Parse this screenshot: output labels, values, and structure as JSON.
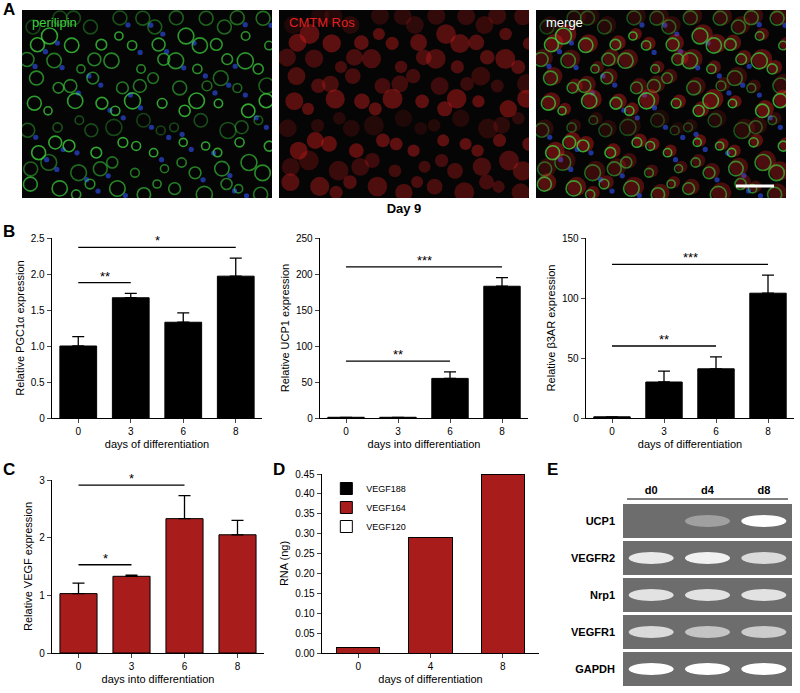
{
  "chart_data": [
    {
      "type": "image",
      "panel": "A",
      "images": [
        {
          "title": "perilipin",
          "color": "#3dd13d"
        },
        {
          "title": "CMTM Ros",
          "color": "#e02020"
        },
        {
          "title": "merge",
          "color": "#ffffff"
        }
      ],
      "caption": "Day 9"
    },
    {
      "type": "bar",
      "panel": "B",
      "categories": [
        "0",
        "3",
        "6",
        "8"
      ],
      "values": [
        1.0,
        1.67,
        1.33,
        1.97
      ],
      "errors": [
        0.13,
        0.06,
        0.13,
        0.25
      ],
      "color": "#000000",
      "xlabel": "days of differentiation",
      "ylabel": "Relative PGC1α expression",
      "ylim": [
        0,
        2.5
      ],
      "yticks": [
        0,
        0.5,
        {
          "value": 1,
          "label": "1.0"
        },
        1.5,
        {
          "value": 2,
          "label": "2.0"
        },
        2.5
      ],
      "significance": [
        {
          "from": "0",
          "to": "3",
          "label": "**"
        },
        {
          "from": "0",
          "to": "8",
          "label": "*"
        }
      ]
    },
    {
      "type": "bar",
      "categories": [
        "0",
        "3",
        "6",
        "8"
      ],
      "values": [
        1,
        1,
        55,
        183
      ],
      "errors": [
        0,
        0,
        9,
        12
      ],
      "color": "#000000",
      "xlabel": "days into differentiation",
      "ylabel": "Relative UCP1 expression",
      "ylim": [
        0,
        250
      ],
      "yticks": [
        0,
        50,
        100,
        150,
        200,
        250
      ],
      "significance": [
        {
          "from": "0",
          "to": "6",
          "label": "**"
        },
        {
          "from": "0",
          "to": "8",
          "label": "***"
        }
      ]
    },
    {
      "type": "bar",
      "categories": [
        "0",
        "3",
        "6",
        "8"
      ],
      "values": [
        1,
        30,
        41,
        104
      ],
      "errors": [
        0,
        9,
        10,
        15
      ],
      "color": "#000000",
      "xlabel": "days of differentiation",
      "ylabel": "Relative β3AR expression",
      "ylim": [
        0,
        150
      ],
      "yticks": [
        0,
        50,
        100,
        150
      ],
      "significance": [
        {
          "from": "0",
          "to": "6",
          "label": "**"
        },
        {
          "from": "0",
          "to": "8",
          "label": "***"
        }
      ]
    },
    {
      "type": "bar",
      "panel": "C",
      "categories": [
        "0",
        "3",
        "6",
        "8"
      ],
      "values": [
        1.03,
        1.33,
        2.33,
        2.05
      ],
      "errors": [
        0.18,
        0.02,
        0.4,
        0.25
      ],
      "color": "#a81c1c",
      "xlabel": "days into differentiation",
      "ylabel": "Relative VEGF expression",
      "ylim": [
        0,
        3
      ],
      "yticks": [
        0,
        1,
        2,
        3
      ],
      "significance": [
        {
          "from": "0",
          "to": "3",
          "label": "*"
        },
        {
          "from": "0",
          "to": "6",
          "label": "*"
        }
      ]
    },
    {
      "type": "bar",
      "panel": "D",
      "categories": [
        "0",
        "4",
        "8"
      ],
      "stacked": true,
      "legend": "upper left",
      "series": [
        {
          "name": "VEGF120",
          "color": "#ffffff",
          "values": [
            0,
            0,
            0
          ]
        },
        {
          "name": "VEGF164",
          "color": "#a81c1c",
          "values": [
            0.015,
            0.29,
            0.45
          ]
        },
        {
          "name": "VEGF188",
          "color": "#000000",
          "values": [
            0,
            0,
            0
          ]
        }
      ],
      "xlabel": "days of differentiation",
      "ylabel": "RNA (ng)",
      "ylim": [
        0,
        0.45
      ],
      "yticks": [
        {
          "value": 0,
          "label": "0.00"
        },
        0.05,
        {
          "value": 0.1,
          "label": "0.10"
        },
        0.15,
        {
          "value": 0.2,
          "label": "0.20"
        },
        0.25,
        {
          "value": 0.3,
          "label": "0.30"
        },
        0.35,
        {
          "value": 0.4,
          "label": "0.40"
        },
        0.45
      ]
    },
    {
      "type": "blot",
      "panel": "E",
      "columns": [
        "d0",
        "d4",
        "d8"
      ],
      "rows": [
        {
          "name": "UCP1",
          "values": [
            0,
            0.35,
            1
          ]
        },
        {
          "name": "VEGFR2",
          "values": [
            0.85,
            0.9,
            0.75
          ]
        },
        {
          "name": "Nrp1",
          "values": [
            0.8,
            0.8,
            0.8
          ]
        },
        {
          "name": "VEGFR1",
          "values": [
            0.75,
            0.6,
            0.65
          ]
        },
        {
          "name": "GAPDH",
          "values": [
            1,
            1,
            1
          ]
        }
      ]
    }
  ]
}
